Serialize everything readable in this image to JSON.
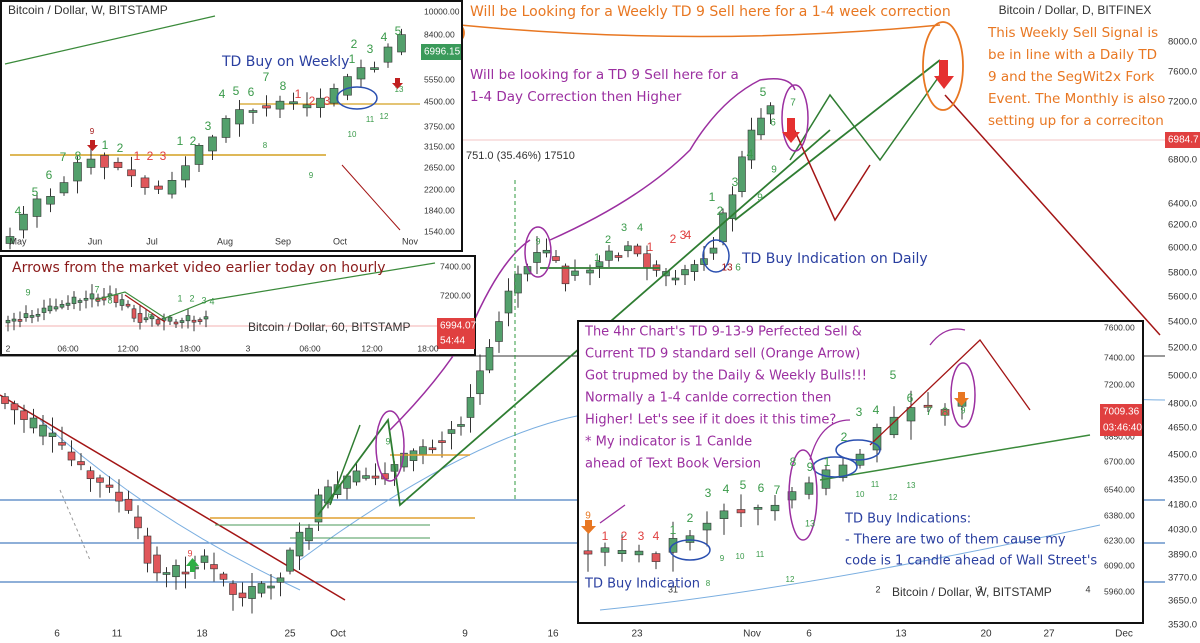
{
  "main": {
    "title": "Bitcoin / Dollar, D, BITFINEX",
    "price_axis": [
      "8000.0",
      "7600.0",
      "7200.0",
      "6800.0",
      "6400.0",
      "6200.0",
      "6000.0",
      "5800.0",
      "5600.0",
      "5400.0",
      "5200.0",
      "5000.0",
      "4800.0",
      "4650.0",
      "4500.0",
      "4350.0",
      "4180.0",
      "4030.0",
      "3890.0",
      "3770.0",
      "3650.0",
      "3530.0"
    ],
    "last_price": "6984.7",
    "time_axis": [
      "6",
      "11",
      "18",
      "25",
      "Oct",
      "9",
      "16",
      "23",
      "Nov",
      "6",
      "13",
      "20",
      "27",
      "Dec"
    ],
    "range_label": "751.0 (35.46%) 17510",
    "counts": [
      "9",
      "9",
      "9",
      "1",
      "2",
      "3",
      "4",
      "1",
      "2",
      "3",
      "4",
      "1",
      "2",
      "3",
      "4",
      "5",
      "6",
      "7",
      "9",
      "9",
      "13",
      "6"
    ]
  },
  "annotations": {
    "weekly_sell": "Will be Looking for a Weekly TD 9 Sell here for a 1-4 week correction",
    "daily_sell": [
      "Will be looking for a TD 9 Sell here for a",
      "1-4 Day Correction then Higher"
    ],
    "signal_note": [
      "This Weekly Sell Signal is",
      "be in line with a Daily TD",
      "9 and the SegWit2x Fork",
      "Event. The Monthly is also",
      "setting up for a correciton"
    ],
    "td_buy_daily": "TD Buy Indication on Daily",
    "hourly_note": "Arrows from the market video earlier today on hourly",
    "td_buy_weekly": "TD Buy on Weekly"
  },
  "weekly_inset": {
    "title": "Bitcoin / Dollar, W, BITSTAMP",
    "price_axis": [
      "10000.00",
      "8400.00",
      "5550.00",
      "4500.00",
      "3750.00",
      "3150.00",
      "2650.00",
      "2200.00",
      "1840.00",
      "1540.00"
    ],
    "last_price": "6996.15",
    "time_axis": [
      "May",
      "Jun",
      "Jul",
      "Aug",
      "Sep",
      "Oct",
      "Nov"
    ],
    "counts": [
      "4",
      "5",
      "6",
      "7",
      "8",
      "9",
      "1",
      "2",
      "1",
      "2",
      "3",
      "1",
      "2",
      "3",
      "4",
      "5",
      "6",
      "7",
      "8",
      "1",
      "2",
      "3",
      "1",
      "2",
      "3",
      "4",
      "5",
      "8",
      "9",
      "10",
      "11",
      "12",
      "13"
    ]
  },
  "hourly_inset": {
    "title": "Bitcoin / Dollar, 60, BITSTAMP",
    "price_axis": [
      "7400.00",
      "7200.00"
    ],
    "last_price": "6994.07",
    "countdown": "54:44",
    "time_axis": [
      "2",
      "06:00",
      "12:00",
      "18:00",
      "3",
      "06:00",
      "12:00",
      "18:00"
    ],
    "counts": [
      "9",
      "7",
      "8",
      "1",
      "2",
      "3",
      "4",
      "6"
    ]
  },
  "four_hour_inset": {
    "title": "Bitcoin / Dollar, W, BITSTAMP",
    "notes": [
      "The 4hr Chart's TD 9-13-9 Perfected Sell &",
      "Current TD 9 standard sell (Orange Arrow)",
      "Got trupmed by the Daily & Weekly Bulls!!!",
      "Normally a 1-4 canlde correction then",
      "Higher! Let's see if it does it this time?",
      "* My indicator is 1 Canlde",
      "ahead of Text Book Version"
    ],
    "buy_notes": [
      "TD Buy Indications:",
      "- There are two of them cause my",
      "code is 1 candle ahead of Wall Street's"
    ],
    "buy_label": "TD Buy Indication",
    "price_axis": [
      "7600.00",
      "7400.00",
      "7200.00",
      "6850.00",
      "6700.00",
      "6540.00",
      "6380.00",
      "6230.00",
      "6090.00",
      "5960.00"
    ],
    "last_price": "7009.36",
    "countdown": "03:46:40",
    "time_axis": [
      "31",
      "2",
      "3",
      "4"
    ],
    "counts": [
      "9",
      "1",
      "2",
      "3",
      "4",
      "1",
      "2",
      "3",
      "4",
      "5",
      "6",
      "7",
      "8",
      "9",
      "1",
      "2",
      "3",
      "4",
      "5",
      "6",
      "7",
      "8",
      "9",
      "8",
      "9",
      "10",
      "11",
      "12",
      "13",
      "10",
      "11",
      "12",
      "13"
    ]
  }
}
